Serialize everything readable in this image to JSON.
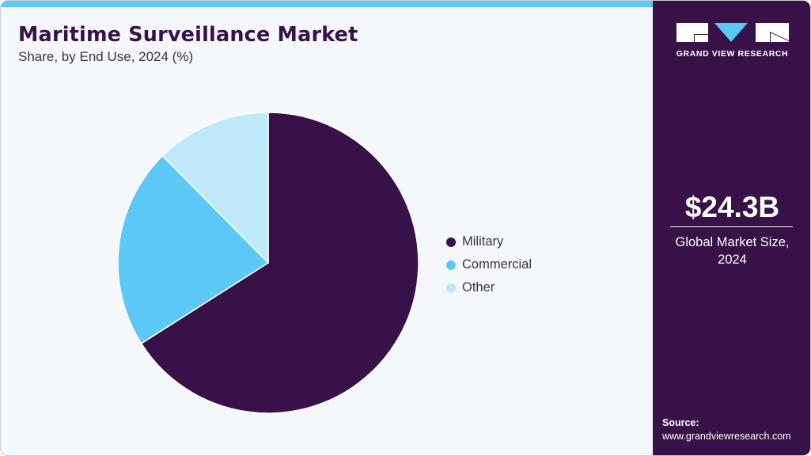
{
  "header": {
    "title": "Maritime Surveillance Market",
    "subtitle": "Share, by End Use, 2024 (%)"
  },
  "colors": {
    "accent_bar": "#5bc8f5",
    "panel_bg": "#371148",
    "chart_bg": "#f4f8fb"
  },
  "chart_data": {
    "type": "pie",
    "title": "Maritime Surveillance Market",
    "subtitle": "Share, by End Use, 2024 (%)",
    "categories": [
      "Military",
      "Commercial",
      "Other"
    ],
    "values": [
      66.0,
      21.6,
      12.4
    ],
    "colors": [
      "#371148",
      "#5bc8f5",
      "#bde9f9"
    ],
    "start_angle_deg": 0,
    "direction": "clockwise",
    "legend_position": "right",
    "data_labels": false
  },
  "legend": {
    "items": [
      {
        "label": "Military",
        "color": "#371148"
      },
      {
        "label": "Commercial",
        "color": "#5bc8f5"
      },
      {
        "label": "Other",
        "color": "#bde9f9"
      }
    ]
  },
  "sidebar": {
    "logo_text": "GRAND VIEW RESEARCH",
    "stat_value": "$24.3B",
    "stat_label_line1": "Global Market Size,",
    "stat_label_line2": "2024",
    "source_label": "Source:",
    "source_url": "www.grandviewresearch.com"
  }
}
